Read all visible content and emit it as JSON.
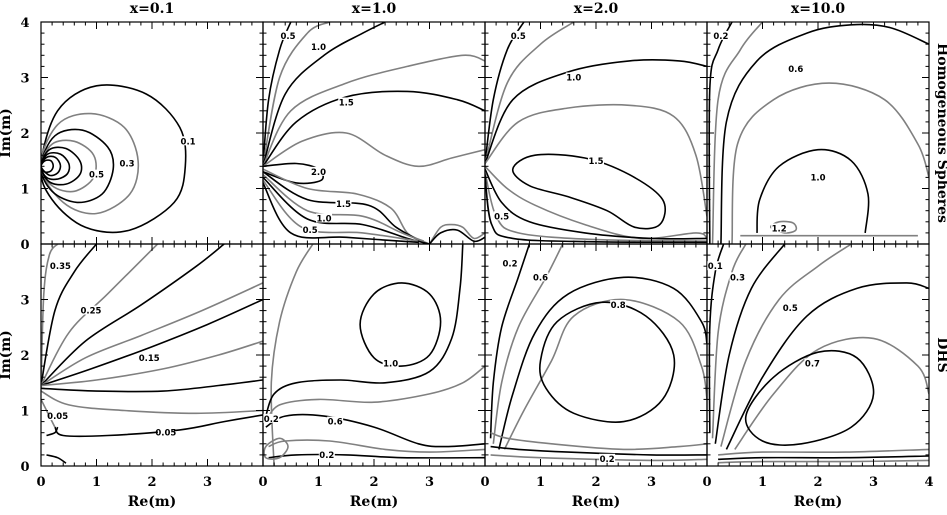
{
  "chart_data": {
    "type": "contour",
    "layout": "2x4 grid of contour panels",
    "columns": [
      "x=0.1",
      "x=1.0",
      "x=2.0",
      "x=10.0"
    ],
    "rows": [
      "Homogeneous Spheres",
      "DHS"
    ],
    "xlabel": "Re(m)",
    "ylabel": "Im(m)",
    "xlim": [
      0,
      4
    ],
    "ylim": [
      0,
      4
    ],
    "x_ticks": [
      "0",
      "1",
      "2",
      "3"
    ],
    "x_ticks_last_panel": [
      "0",
      "1",
      "2",
      "3",
      "4"
    ],
    "y_ticks": [
      "0",
      "1",
      "2",
      "3",
      "4"
    ],
    "y_ticks_lower": [
      "0",
      "1",
      "2",
      "3"
    ],
    "line_colors": {
      "labeled": "#000000",
      "intermediate": "#808080"
    },
    "panels": [
      {
        "row": 0,
        "col": 0,
        "contour_labels": [
          {
            "text": "0.1",
            "x": 2.65,
            "y": 1.85
          },
          {
            "text": "0.3",
            "x": 1.55,
            "y": 1.45
          },
          {
            "text": "0.5",
            "x": 1.0,
            "y": 1.25
          }
        ]
      },
      {
        "row": 0,
        "col": 1,
        "contour_labels": [
          {
            "text": "0.5",
            "x": 0.45,
            "y": 3.75
          },
          {
            "text": "1.0",
            "x": 1.0,
            "y": 3.55
          },
          {
            "text": "1.5",
            "x": 1.5,
            "y": 2.55
          },
          {
            "text": "2.0",
            "x": 1.0,
            "y": 1.3
          },
          {
            "text": "1.5",
            "x": 1.45,
            "y": 0.72
          },
          {
            "text": "1.0",
            "x": 1.1,
            "y": 0.46
          },
          {
            "text": "0.5",
            "x": 0.85,
            "y": 0.25
          }
        ]
      },
      {
        "row": 1,
        "col": 0,
        "contour_labels": [
          {
            "text": "0.35",
            "x": 0.35,
            "y": 3.6
          },
          {
            "text": "0.25",
            "x": 0.9,
            "y": 2.8
          },
          {
            "text": "0.15",
            "x": 1.95,
            "y": 1.95
          },
          {
            "text": "0.05",
            "x": 0.3,
            "y": 0.9
          },
          {
            "text": "0.05",
            "x": 2.25,
            "y": 0.6
          }
        ]
      },
      {
        "row": 1,
        "col": 1,
        "contour_labels": [
          {
            "text": "1.0",
            "x": 2.3,
            "y": 1.85
          },
          {
            "text": "0.6",
            "x": 1.3,
            "y": 0.8
          },
          {
            "text": "0.2",
            "x": 0.15,
            "y": 0.85
          },
          {
            "text": "0.2",
            "x": 1.15,
            "y": 0.2
          }
        ]
      },
      {
        "row": 0,
        "col": 2,
        "contour_labels": [
          {
            "text": "0.5",
            "x": 0.6,
            "y": 3.75
          },
          {
            "text": "1.0",
            "x": 1.6,
            "y": 3.0
          },
          {
            "text": "1.5",
            "x": 2.0,
            "y": 1.5
          },
          {
            "text": "0.5",
            "x": 0.3,
            "y": 0.5
          }
        ]
      },
      {
        "row": 0,
        "col": 3,
        "contour_labels": [
          {
            "text": "0.2",
            "x": 0.25,
            "y": 3.75
          },
          {
            "text": "0.6",
            "x": 1.6,
            "y": 3.15
          },
          {
            "text": "1.0",
            "x": 2.0,
            "y": 1.2
          },
          {
            "text": "1.2",
            "x": 1.3,
            "y": 0.28
          }
        ]
      },
      {
        "row": 1,
        "col": 2,
        "contour_labels": [
          {
            "text": "0.2",
            "x": 0.45,
            "y": 3.65
          },
          {
            "text": "0.6",
            "x": 1.0,
            "y": 3.4
          },
          {
            "text": "0.8",
            "x": 2.4,
            "y": 2.9
          },
          {
            "text": "0.2",
            "x": 2.2,
            "y": 0.13
          }
        ]
      },
      {
        "row": 1,
        "col": 3,
        "contour_labels": [
          {
            "text": "0.1",
            "x": 0.15,
            "y": 3.6
          },
          {
            "text": "0.3",
            "x": 0.55,
            "y": 3.4
          },
          {
            "text": "0.5",
            "x": 1.5,
            "y": 2.85
          },
          {
            "text": "0.7",
            "x": 1.9,
            "y": 1.85
          }
        ]
      }
    ]
  }
}
